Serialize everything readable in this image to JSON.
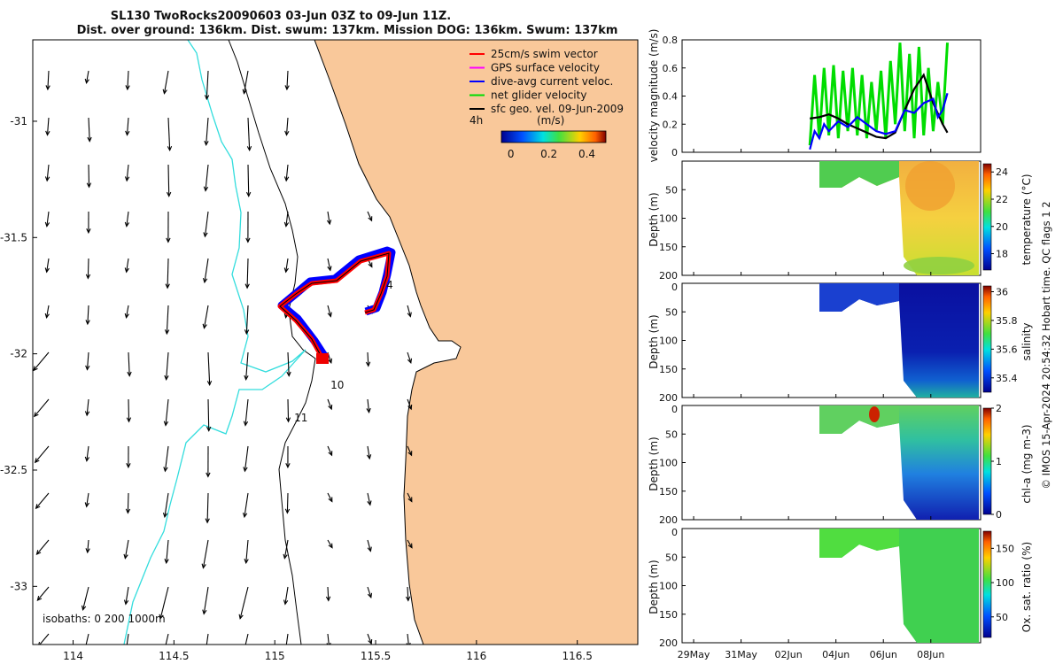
{
  "header": {
    "title_line1": "SL130 TwoRocks20090603 03-Jun 03Z to 09-Jun 11Z.",
    "title_line2": "Dist. over ground: 136km. Dist. swum: 137km. Mission DOG: 136km. Swum: 137km"
  },
  "map": {
    "legend": [
      {
        "label": "25cm/s swim vector",
        "color": "#ff0000"
      },
      {
        "label": "GPS surface velocity",
        "color": "#ff00ff"
      },
      {
        "label": "dive-avg current veloc.",
        "color": "#0000ff"
      },
      {
        "label": "net glider velocity",
        "color": "#00dd00"
      },
      {
        "label": "sfc geo. vel. 09-Jun-2009",
        "color": "#000000"
      }
    ],
    "interval_label": "4h",
    "colorbar": {
      "unit": "(m/s)",
      "ticks": [
        "0",
        "0.2",
        "0.4"
      ],
      "range": [
        -0.05,
        0.5
      ]
    },
    "isobaths_label": "isobaths: 0   200  1000m",
    "x_ticks": [
      "114",
      "114.5",
      "115",
      "115.5",
      "116",
      "116.5"
    ],
    "y_ticks": [
      "-31",
      "-31.5",
      "-32",
      "-32.5",
      "-33"
    ],
    "xlim": [
      113.8,
      116.8
    ],
    "ylim": [
      -33.25,
      -30.65
    ],
    "day_labels": [
      {
        "text": "4",
        "lon": 115.57,
        "lat": -31.72
      },
      {
        "text": "10",
        "lon": 115.31,
        "lat": -32.15
      },
      {
        "text": "11",
        "lon": 115.13,
        "lat": -32.29
      }
    ],
    "land_color": "#f9c89a",
    "isobath_200_color": "#000000",
    "isobath_1000_color": "#33dddd"
  },
  "panels": {
    "velocity": {
      "ylabel": "velocity magnitude (m/s)",
      "ylim": [
        0,
        0.8
      ],
      "y_ticks": [
        "0",
        "0.2",
        "0.4",
        "0.6",
        "0.8"
      ]
    },
    "temperature": {
      "ylabel": "Depth (m)",
      "cb_label": "temperature (°C)",
      "cb_ticks": [
        "18",
        "20",
        "22",
        "24"
      ],
      "cb_range": [
        16.8,
        24.6
      ],
      "y_ticks": [
        "50",
        "100",
        "150",
        "200"
      ]
    },
    "salinity": {
      "ylabel": "Depth (m)",
      "cb_label": "salinity",
      "cb_ticks": [
        "35.4",
        "35.6",
        "35.8",
        "36"
      ],
      "cb_range": [
        35.3,
        36.04
      ],
      "y_ticks": [
        "0",
        "50",
        "100",
        "150",
        "200"
      ]
    },
    "chla": {
      "ylabel": "Depth (m)",
      "cb_label": "chl-a (mg m-3)",
      "cb_ticks": [
        "0",
        "1",
        "2"
      ],
      "cb_range": [
        0,
        2
      ],
      "y_ticks": [
        "0",
        "50",
        "100",
        "150",
        "200"
      ]
    },
    "oxygen": {
      "ylabel": "Depth (m)",
      "cb_label": "Ox. sat. ratio (%)",
      "cb_ticks": [
        "50",
        "100",
        "150"
      ],
      "cb_range": [
        20,
        175
      ],
      "y_ticks": [
        "0",
        "50",
        "100",
        "150",
        "200"
      ]
    },
    "time_ticks": [
      "29May",
      "31May",
      "02Jun",
      "04Jun",
      "06Jun",
      "08Jun"
    ]
  },
  "credit": "© IMOS 15-Apr-2024 20:54:32 Hobart time. QC flags 1  2",
  "chart_data": [
    {
      "type": "line",
      "title": "SL130 TwoRocks20090603 03-Jun 03Z to 09-Jun 11Z.",
      "xlabel": "",
      "ylabel": "velocity magnitude (m/s)",
      "x_unit": "days since 29May",
      "ylim": [
        0,
        0.8
      ],
      "series": [
        {
          "name": "net glider velocity",
          "color": "#00dd00",
          "x": [
            5.2,
            5.4,
            5.6,
            5.8,
            6.0,
            6.2,
            6.4,
            6.6,
            6.8,
            7.0,
            7.2,
            7.4,
            7.6,
            7.8,
            8.0,
            8.2,
            8.4,
            8.6,
            8.8,
            9.0,
            9.2,
            9.4,
            9.6,
            9.8,
            10.0,
            10.2,
            10.4,
            10.6,
            10.8,
            11.0
          ],
          "y": [
            0.05,
            0.55,
            0.1,
            0.6,
            0.12,
            0.62,
            0.1,
            0.58,
            0.15,
            0.6,
            0.12,
            0.55,
            0.1,
            0.5,
            0.15,
            0.58,
            0.1,
            0.65,
            0.2,
            0.78,
            0.15,
            0.7,
            0.1,
            0.75,
            0.12,
            0.6,
            0.15,
            0.5,
            0.2,
            0.78
          ]
        },
        {
          "name": "sfc geo. vel. 09-Jun-2009",
          "color": "#000000",
          "x": [
            5.2,
            5.6,
            6.0,
            6.4,
            6.8,
            7.2,
            7.6,
            8.0,
            8.4,
            8.8,
            9.2,
            9.6,
            10.0,
            10.4,
            10.8,
            11.0
          ],
          "y": [
            0.24,
            0.25,
            0.27,
            0.24,
            0.2,
            0.17,
            0.14,
            0.11,
            0.1,
            0.14,
            0.3,
            0.45,
            0.55,
            0.35,
            0.2,
            0.14
          ]
        },
        {
          "name": "dive-avg current veloc.",
          "color": "#0000ff",
          "x": [
            5.2,
            5.4,
            5.6,
            5.8,
            6.0,
            6.4,
            6.8,
            7.2,
            7.6,
            8.0,
            8.4,
            8.8,
            9.2,
            9.6,
            10.0,
            10.4,
            10.6,
            10.8,
            11.0
          ],
          "y": [
            0.02,
            0.15,
            0.1,
            0.2,
            0.15,
            0.22,
            0.18,
            0.25,
            0.2,
            0.15,
            0.13,
            0.15,
            0.3,
            0.28,
            0.35,
            0.38,
            0.25,
            0.3,
            0.42
          ]
        }
      ]
    },
    {
      "type": "heatmap",
      "title": "",
      "ylabel": "Depth (m)",
      "variable": "temperature (°C)",
      "ylim": [
        200,
        0
      ],
      "range": [
        16.8,
        24.6
      ]
    },
    {
      "type": "heatmap",
      "title": "",
      "ylabel": "Depth (m)",
      "variable": "salinity",
      "ylim": [
        200,
        0
      ],
      "range": [
        35.3,
        36.04
      ]
    },
    {
      "type": "heatmap",
      "title": "",
      "ylabel": "Depth (m)",
      "variable": "chl-a (mg m-3)",
      "ylim": [
        200,
        0
      ],
      "range": [
        0,
        2
      ]
    },
    {
      "type": "heatmap",
      "title": "",
      "ylabel": "Depth (m)",
      "variable": "Ox. sat. ratio (%)",
      "ylim": [
        200,
        0
      ],
      "range": [
        20,
        175
      ]
    }
  ]
}
